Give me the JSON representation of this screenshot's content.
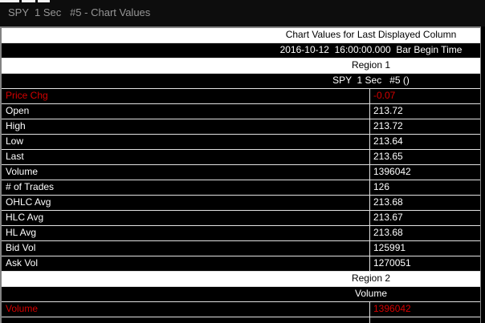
{
  "title_bar": {
    "title": "SPY  1 Sec   #5 - Chart Values"
  },
  "colors": {
    "highlight_red": "#d40000",
    "window_border_gray": "#828282",
    "row_background": "#000000",
    "header_light_background": "#ffffff",
    "separator": "#e2e2e2",
    "title_text_gray": "#969696"
  },
  "headers": {
    "chart_values_caption": "Chart Values for Last Displayed Column",
    "bar_begin_time": "2016-10-12  16:00:00.000  Bar Begin Time",
    "region1_label": "Region 1",
    "region1_chart_name": "SPY  1 Sec   #5 ()",
    "region2_label": "Region 2",
    "region2_study_name": "Volume"
  },
  "region1_rows": [
    {
      "label": "Price Chg",
      "value": "-0.07",
      "highlight": true
    },
    {
      "label": "Open",
      "value": "213.72"
    },
    {
      "label": "High",
      "value": "213.72"
    },
    {
      "label": "Low",
      "value": "213.64"
    },
    {
      "label": "Last",
      "value": "213.65"
    },
    {
      "label": "Volume",
      "value": "1396042"
    },
    {
      "label": "# of Trades",
      "value": "126"
    },
    {
      "label": "OHLC Avg",
      "value": "213.68"
    },
    {
      "label": "HLC Avg",
      "value": "213.67"
    },
    {
      "label": "HL Avg",
      "value": "213.68"
    },
    {
      "label": "Bid Vol",
      "value": "125991"
    },
    {
      "label": "Ask Vol",
      "value": "1270051"
    }
  ],
  "region2_rows": [
    {
      "label": "Volume",
      "value": "1396042",
      "highlight": true
    }
  ]
}
